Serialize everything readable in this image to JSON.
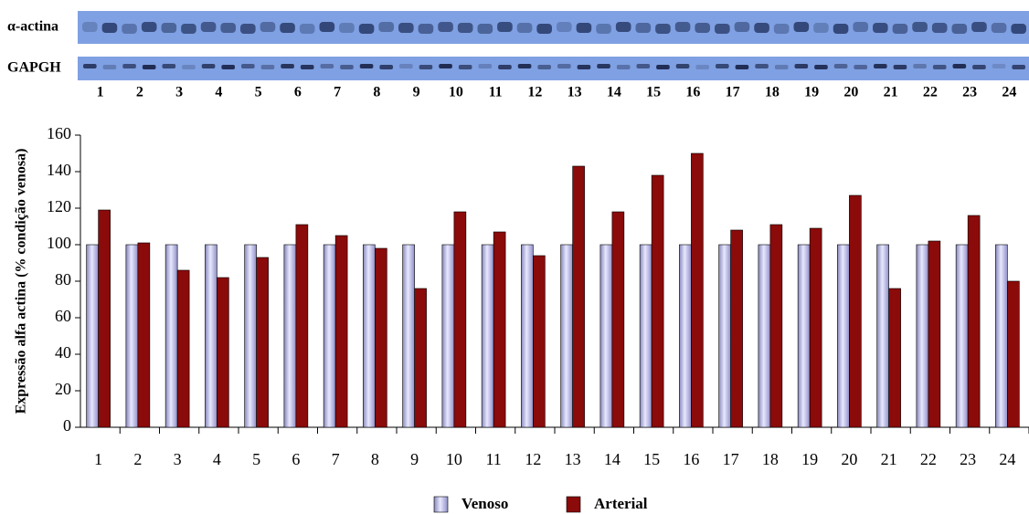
{
  "blot": {
    "rows": [
      "α-actina",
      "GAPGH"
    ],
    "lanes": [
      "1",
      "2",
      "3",
      "4",
      "5",
      "6",
      "7",
      "8",
      "9",
      "10",
      "11",
      "12",
      "13",
      "14",
      "15",
      "16",
      "17",
      "18",
      "19",
      "20",
      "21",
      "22",
      "23",
      "24"
    ]
  },
  "chart_data": {
    "type": "bar",
    "y_label": "Expressão alfa actina (% condição venosa)",
    "categories": [
      "1",
      "2",
      "3",
      "4",
      "5",
      "6",
      "7",
      "8",
      "9",
      "10",
      "11",
      "12",
      "13",
      "14",
      "15",
      "16",
      "17",
      "18",
      "19",
      "20",
      "21",
      "22",
      "23",
      "24"
    ],
    "series": [
      {
        "name": "Venoso",
        "color": "#b4b4e0",
        "values": [
          100,
          100,
          100,
          100,
          100,
          100,
          100,
          100,
          100,
          100,
          100,
          100,
          100,
          100,
          100,
          100,
          100,
          100,
          100,
          100,
          100,
          100,
          100,
          100
        ]
      },
      {
        "name": "Arterial",
        "color": "#8b0a0a",
        "values": [
          119,
          101,
          86,
          82,
          93,
          111,
          105,
          98,
          76,
          118,
          107,
          94,
          143,
          118,
          138,
          150,
          108,
          111,
          109,
          127,
          76,
          102,
          116,
          80
        ]
      }
    ],
    "ylim": [
      0,
      160
    ],
    "yticks": [
      0,
      20,
      40,
      60,
      80,
      100,
      120,
      140,
      160
    ],
    "grid": false,
    "legend": "bottom"
  }
}
